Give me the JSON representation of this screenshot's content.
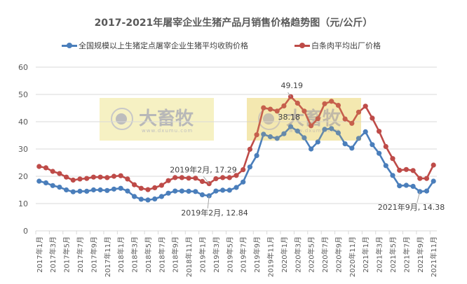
{
  "chart_data": {
    "type": "line",
    "title": "2017-2021年屠宰企业生猪产品月销售价格趋势图（元/公斤）",
    "xlabel": "",
    "ylabel": "",
    "ylim": [
      0,
      60
    ],
    "yticks": [
      0,
      10,
      20,
      30,
      40,
      50,
      60
    ],
    "grid": true,
    "legend_position": "top",
    "categories": [
      "2017年1月",
      "2017年2月",
      "2017年3月",
      "2017年4月",
      "2017年5月",
      "2017年6月",
      "2017年7月",
      "2017年8月",
      "2017年9月",
      "2017年10月",
      "2017年11月",
      "2017年12月",
      "2018年1月",
      "2018年2月",
      "2018年3月",
      "2018年4月",
      "2018年5月",
      "2018年6月",
      "2018年7月",
      "2018年8月",
      "2018年9月",
      "2018年10月",
      "2018年11月",
      "2018年12月",
      "2019年1月",
      "2019年2月",
      "2019年3月",
      "2019年4月",
      "2019年5月",
      "2019年6月",
      "2019年7月",
      "2019年8月",
      "2019年9月",
      "2019年10月",
      "2019年11月",
      "2019年12月",
      "2020年1月",
      "2020年2月",
      "2020年3月",
      "2020年4月",
      "2020年5月",
      "2020年6月",
      "2020年7月",
      "2020年8月",
      "2020年9月",
      "2020年10月",
      "2020年11月",
      "2020年12月",
      "2021年1月",
      "2021年2月",
      "2021年3月",
      "2021年4月",
      "2021年5月",
      "2021年6月",
      "2021年7月",
      "2021年8月",
      "2021年9月",
      "2021年10月",
      "2021年11月"
    ],
    "x_tick_labels": [
      "2017年1月",
      "2017年3月",
      "2017年5月",
      "2017年7月",
      "2017年9月",
      "2017年11月",
      "2018年1月",
      "2018年3月",
      "2018年5月",
      "2018年7月",
      "2018年9月",
      "2018年11月",
      "2019年1月",
      "2019年3月",
      "2019年5月",
      "2019年7月",
      "2019年9月",
      "2019年11月",
      "2020年1月",
      "2020年3月",
      "2020年5月",
      "2020年7月",
      "2020年9月",
      "2020年11月",
      "2021年1月",
      "2021年3月",
      "2021年5月",
      "2021年7月",
      "2021年9月",
      "2021年11月"
    ],
    "series": [
      {
        "name": "全国规模以上生猪定点屠宰企业生猪平均收购价格",
        "color": "#4a7ebb",
        "values": [
          18.2,
          17.6,
          16.6,
          16.0,
          15.0,
          14.3,
          14.5,
          14.5,
          15.0,
          15.0,
          14.8,
          15.3,
          15.6,
          14.6,
          12.6,
          11.6,
          11.3,
          11.7,
          12.6,
          13.8,
          14.6,
          14.6,
          14.5,
          14.4,
          13.2,
          12.84,
          14.6,
          14.9,
          14.9,
          15.9,
          17.9,
          23.4,
          27.6,
          35.4,
          34.5,
          33.9,
          35.6,
          38.18,
          36.6,
          34.1,
          30.0,
          32.6,
          37.2,
          37.5,
          35.9,
          31.9,
          30.3,
          33.9,
          36.3,
          31.6,
          28.4,
          23.9,
          20.3,
          16.5,
          16.7,
          16.3,
          14.38,
          14.6,
          18.2
        ]
      },
      {
        "name": "白条肉平均出厂价格",
        "color": "#be4b48",
        "values": [
          23.6,
          23.1,
          21.8,
          21.0,
          19.7,
          18.6,
          19.0,
          19.2,
          19.7,
          19.7,
          19.5,
          20.0,
          20.2,
          19.0,
          16.9,
          15.6,
          15.1,
          15.8,
          16.7,
          18.4,
          19.5,
          19.5,
          19.3,
          19.3,
          18.1,
          17.29,
          19.1,
          19.5,
          19.5,
          20.3,
          22.4,
          29.9,
          35.2,
          45.1,
          44.6,
          43.9,
          45.8,
          49.19,
          46.8,
          43.9,
          38.5,
          41.1,
          46.6,
          47.5,
          46.0,
          41.0,
          39.4,
          43.5,
          45.7,
          41.3,
          36.5,
          30.9,
          26.5,
          22.2,
          22.5,
          22.1,
          19.2,
          19.2,
          24.1
        ]
      }
    ],
    "annotations": [
      {
        "text": "49.19",
        "category": "2020年2月",
        "series": "白条肉平均出厂价格"
      },
      {
        "text": "38.18",
        "category": "2020年2月",
        "series": "全国规模以上生猪定点屠宰企业生猪平均收购价格"
      },
      {
        "text": "2019年2月, 17.29",
        "category": "2019年2月",
        "series": "白条肉平均出厂价格"
      },
      {
        "text": "2019年2月, 12.84",
        "category": "2019年2月",
        "series": "全国规模以上生猪定点屠宰企业生猪平均收购价格"
      },
      {
        "text": "2021年9月, 14.38",
        "category": "2021年9月",
        "series": "全国规模以上生猪定点屠宰企业生猪平均收购价格"
      }
    ]
  },
  "watermark": {
    "text": "大畜牧",
    "url": "www.dxumu.com"
  }
}
